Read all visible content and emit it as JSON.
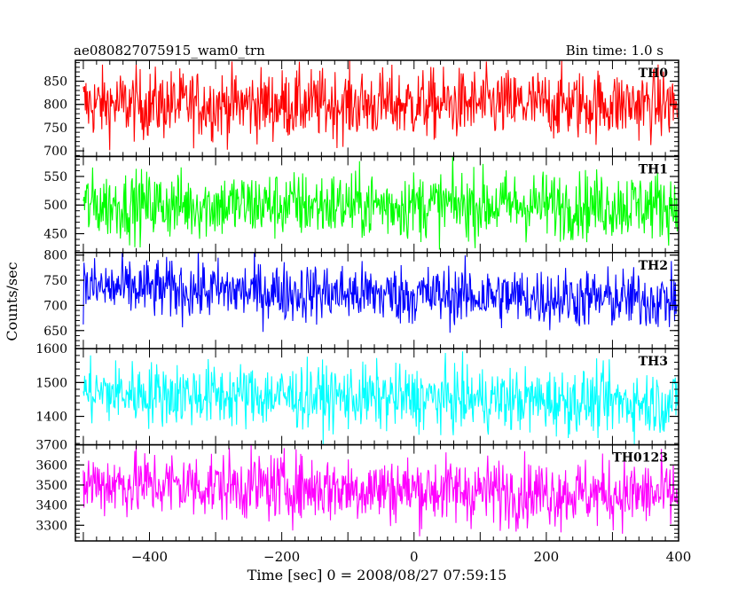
{
  "header": {
    "title": "ae080827075915_wam0_trn",
    "bin_time": "Bin time: 1.0 s"
  },
  "chart_data": {
    "type": "line",
    "xlabel": "Time [sec] 0 = 2008/08/27 07:59:15",
    "ylabel": "Counts/sec",
    "xlim": [
      -512,
      400
    ],
    "xticks": [
      -400,
      -200,
      0,
      200,
      400
    ],
    "xtick_labels": [
      "−400",
      "−200",
      "0",
      "200",
      "400"
    ],
    "panels": [
      {
        "name": "TH0",
        "color": "#ff0000",
        "ylim": [
          688,
          895
        ],
        "yticks": [
          700,
          750,
          800,
          850
        ],
        "mean": 800,
        "spread": 38
      },
      {
        "name": "TH1",
        "color": "#00ff00",
        "ylim": [
          417,
          585
        ],
        "yticks": [
          450,
          500,
          550
        ],
        "mean": 500,
        "spread": 30
      },
      {
        "name": "TH2",
        "color": "#0000ff",
        "ylim": [
          614,
          805
        ],
        "yticks": [
          650,
          700,
          750,
          800
        ],
        "mean": 725,
        "spread": 30,
        "trend": [
          735,
          710
        ]
      },
      {
        "name": "TH3",
        "color": "#00ffff",
        "ylim": [
          1316,
          1600
        ],
        "yticks": [
          1400,
          1500,
          1600
        ],
        "mean": 1450,
        "spread": 48,
        "trend": [
          1470,
          1440
        ]
      },
      {
        "name": "TH0123",
        "color": "#ff00ff",
        "ylim": [
          3222,
          3700
        ],
        "yticks": [
          3300,
          3400,
          3500,
          3600,
          3700
        ],
        "mean": 3470,
        "spread": 85,
        "trend": [
          3510,
          3450
        ]
      }
    ]
  }
}
